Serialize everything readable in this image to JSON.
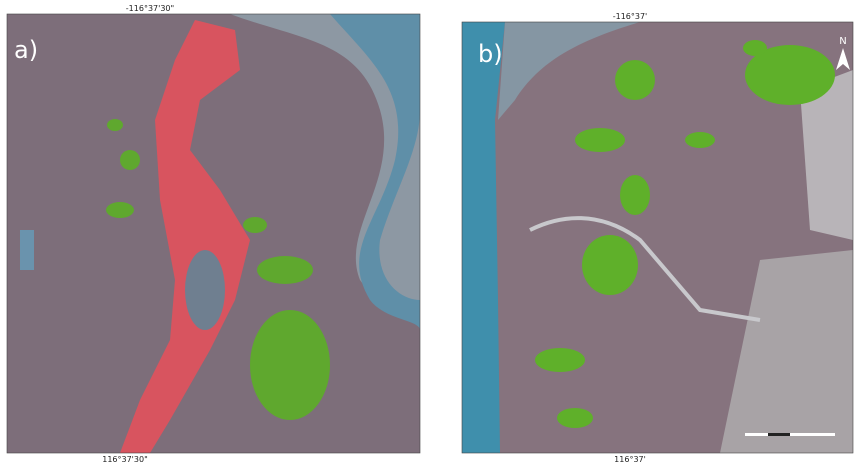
{
  "panels": [
    {
      "label": "a)",
      "top_coord": "-116°37'30\"",
      "bottom_coord": "116°37'30\""
    },
    {
      "label": "b)",
      "top_coord": "-116°37'",
      "bottom_coord": "116°37'",
      "north": "N"
    }
  ]
}
